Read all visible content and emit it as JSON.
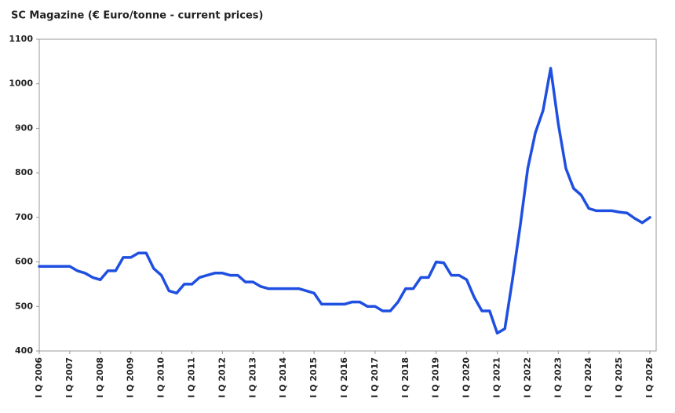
{
  "chart_data": {
    "type": "line",
    "title": "SC Magazine (€ Euro/tonne - current prices)",
    "categories": [
      "I Q 2006",
      null,
      null,
      null,
      "I Q 2007",
      null,
      null,
      null,
      "I Q 2008",
      null,
      null,
      null,
      "I Q 2009",
      null,
      null,
      null,
      "I Q 2010",
      null,
      null,
      null,
      "I Q 2011",
      null,
      null,
      null,
      "I Q 2012",
      null,
      null,
      null,
      "I Q 2013",
      null,
      null,
      null,
      "I Q 2014",
      null,
      null,
      null,
      "I Q 2015",
      null,
      null,
      null,
      "I Q 2016",
      null,
      null,
      null,
      "I Q 2017",
      null,
      null,
      null,
      "I Q 2018",
      null,
      null,
      null,
      "I Q 2019",
      null,
      null,
      null,
      "I Q 2020",
      null,
      null,
      null,
      "I Q 2021",
      null,
      null,
      null,
      "I Q 2022",
      null,
      null,
      null,
      "I Q 2023",
      null,
      null,
      null,
      "I Q 2024",
      null,
      null,
      null,
      "I Q 2025",
      null,
      null,
      null,
      "I Q 2026"
    ],
    "values": [
      590,
      590,
      590,
      590,
      590,
      580,
      575,
      565,
      560,
      580,
      580,
      610,
      610,
      620,
      620,
      585,
      570,
      535,
      530,
      550,
      550,
      565,
      570,
      575,
      575,
      570,
      570,
      555,
      555,
      545,
      540,
      540,
      540,
      540,
      540,
      535,
      530,
      505,
      505,
      505,
      505,
      510,
      510,
      500,
      500,
      490,
      490,
      510,
      540,
      540,
      565,
      565,
      600,
      598,
      570,
      570,
      560,
      520,
      490,
      490,
      440,
      450,
      560,
      680,
      810,
      890,
      940,
      1035,
      910,
      810,
      765,
      750,
      720,
      715,
      715,
      715,
      712,
      710,
      698,
      688,
      700
    ],
    "color": "#1f4fe0",
    "ylim": [
      400,
      1100
    ],
    "yticks": [
      400,
      500,
      600,
      700,
      800,
      900,
      1000,
      1100
    ],
    "grid": false
  }
}
